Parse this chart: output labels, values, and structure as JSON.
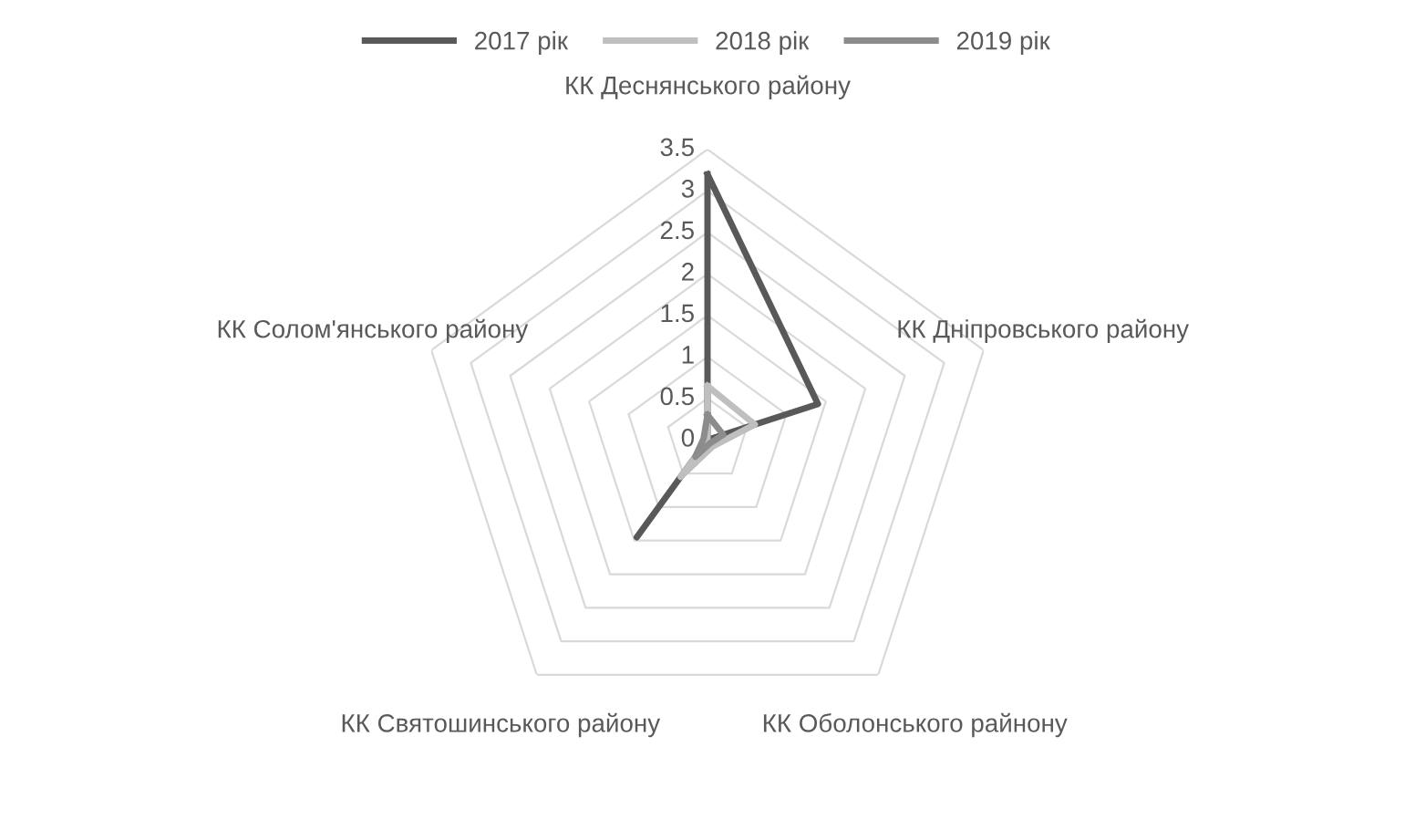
{
  "chart_data": {
    "type": "radar",
    "categories": [
      "КК Деснянського району",
      "КК Дніпровського району",
      "КК Оболонського райнону",
      "КК Святошинського району",
      "КК Солом'янського району"
    ],
    "series": [
      {
        "name": "2017 рік",
        "color": "#595959",
        "values": [
          3.2,
          1.4,
          0,
          1.45,
          0
        ]
      },
      {
        "name": "2018 рік",
        "color": "#bfbfbf",
        "values": [
          0.65,
          0.6,
          0.1,
          0.55,
          0
        ]
      },
      {
        "name": "2019 рік",
        "color": "#8c8c8c",
        "values": [
          0.3,
          0.2,
          0.05,
          0.25,
          0.05
        ]
      }
    ],
    "ylim": [
      0,
      3.5
    ],
    "yticks": [
      0,
      0.5,
      1,
      1.5,
      2,
      2.5,
      3,
      3.5
    ],
    "grid": true,
    "legend": "top",
    "marker": "none",
    "line_style": "solid"
  }
}
